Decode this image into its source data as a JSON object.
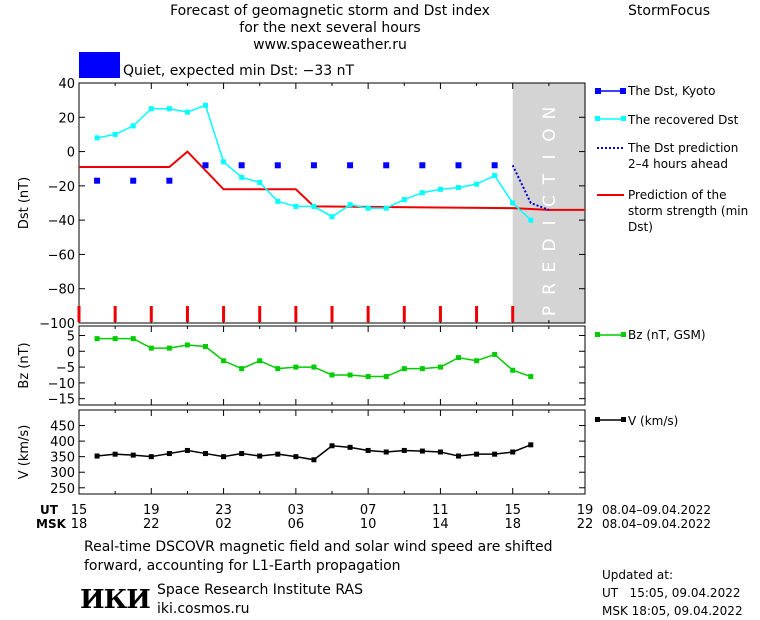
{
  "header": {
    "title_lines": [
      "Forecast of geomagnetic storm and Dst index",
      "for the next several hours",
      "www.spaceweather.ru"
    ],
    "brand": "StormFocus"
  },
  "status": {
    "text": "Quiet, expected min Dst: −33 nT",
    "color": "#0000ff"
  },
  "prediction_label": "PREDICTION",
  "axes": {
    "ut_label": "UT",
    "msk_label": "MSK",
    "ut_ticks": [
      "15",
      "19",
      "23",
      "03",
      "07",
      "11",
      "15",
      "19"
    ],
    "msk_ticks": [
      "18",
      "22",
      "02",
      "06",
      "10",
      "14",
      "18",
      "22"
    ],
    "date_range": "08.04–09.04.2022"
  },
  "footer": {
    "note_lines": [
      "Real-time DSCOVR magnetic field and solar wind speed are shifted",
      "forward, accounting for L1-Earth propagation"
    ],
    "org_logo": "ИКИ",
    "org_name": "Space Research Institute RAS",
    "org_url": "iki.cosmos.ru",
    "updated_title": "Updated at:",
    "updated_ut": "UT   15:05, 09.04.2022",
    "updated_msk": "MSK 18:05, 09.04.2022"
  },
  "chart_data": [
    {
      "type": "line",
      "ylabel": "Dst (nT)",
      "ylim": [
        -100,
        40
      ],
      "yticks": [
        40,
        20,
        0,
        -20,
        -40,
        -60,
        -80,
        -100
      ],
      "x_unit": "hours since 15 UT 08.04.2022",
      "xlim": [
        0,
        28
      ],
      "prediction_region": [
        24,
        28
      ],
      "series": [
        {
          "name": "The Dst, Kyoto",
          "color": "#0000ff",
          "style": "squares",
          "x": [
            1,
            3,
            5,
            7,
            9,
            11,
            13,
            15,
            17,
            19,
            21,
            23
          ],
          "y": [
            -17,
            -17,
            -17,
            -8,
            -8,
            -8,
            -8,
            -8,
            -8,
            -8,
            -8,
            -8
          ]
        },
        {
          "name": "The recovered Dst",
          "color": "#00ffff",
          "style": "line-squares",
          "x": [
            1,
            2,
            3,
            4,
            5,
            6,
            7,
            8,
            9,
            10,
            11,
            12,
            13,
            14,
            15,
            16,
            17,
            18,
            19,
            20,
            21,
            22,
            23,
            24,
            25
          ],
          "y": [
            8,
            10,
            15,
            25,
            25,
            23,
            27,
            -6,
            -15,
            -18,
            -29,
            -32,
            -32,
            -38,
            -31,
            -33,
            -33,
            -28,
            -24,
            -22,
            -21,
            -19,
            -14,
            -30,
            -40
          ]
        },
        {
          "name": "The Dst prediction 2–4 hours ahead",
          "color": "#0000cc",
          "style": "dotted",
          "x": [
            24,
            25,
            26
          ],
          "y": [
            -8,
            -30,
            -34
          ]
        },
        {
          "name": "Prediction of the storm strength (min Dst)",
          "color": "#ee0000",
          "style": "line",
          "x": [
            0,
            5,
            6,
            8,
            12,
            13,
            24,
            26,
            28
          ],
          "y": [
            -9,
            -9,
            0,
            -22,
            -22,
            -32,
            -33,
            -34,
            -34
          ]
        }
      ],
      "event_markers": {
        "color": "#ee0000",
        "x": [
          0,
          2,
          4,
          6,
          8,
          10,
          12,
          14,
          16,
          18,
          20,
          22,
          24
        ]
      }
    },
    {
      "type": "line",
      "ylabel": "Bz (nT)",
      "ylim": [
        -17,
        8
      ],
      "yticks": [
        5,
        0,
        -5,
        -10,
        -15
      ],
      "series": [
        {
          "name": "Bz (nT, GSM)",
          "color": "#00cc00",
          "x": [
            1,
            2,
            3,
            4,
            5,
            6,
            7,
            8,
            9,
            10,
            11,
            12,
            13,
            14,
            15,
            16,
            17,
            18,
            19,
            20,
            21,
            22,
            23,
            24,
            25
          ],
          "y": [
            4,
            4,
            4,
            1,
            1,
            2,
            1.5,
            -3,
            -5.5,
            -3,
            -5.5,
            -5,
            -5,
            -7.5,
            -7.5,
            -8,
            -8,
            -5.5,
            -5.5,
            -5,
            -2,
            -3,
            -1,
            -6,
            -8
          ]
        }
      ]
    },
    {
      "type": "line",
      "ylabel": "V (km/s)",
      "ylim": [
        230,
        500
      ],
      "yticks": [
        450,
        400,
        350,
        300,
        250
      ],
      "series": [
        {
          "name": "V (km/s)",
          "color": "#000000",
          "x": [
            1,
            2,
            3,
            4,
            5,
            6,
            7,
            8,
            9,
            10,
            11,
            12,
            13,
            14,
            15,
            16,
            17,
            18,
            19,
            20,
            21,
            22,
            23,
            24,
            25
          ],
          "y": [
            352,
            358,
            355,
            350,
            360,
            370,
            360,
            350,
            360,
            352,
            358,
            350,
            340,
            385,
            380,
            370,
            365,
            370,
            368,
            365,
            352,
            358,
            358,
            365,
            388
          ]
        }
      ]
    }
  ]
}
